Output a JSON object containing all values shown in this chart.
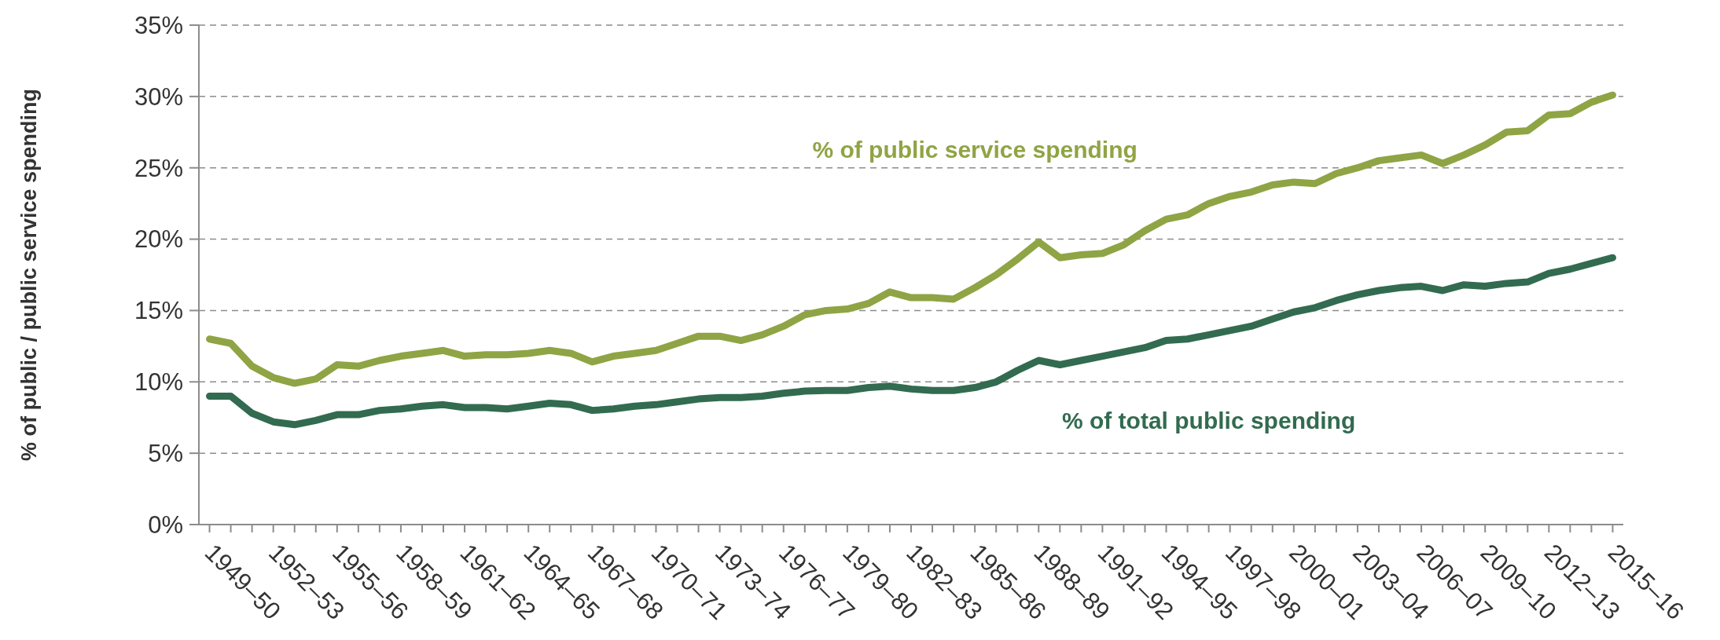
{
  "chart_data": {
    "type": "line",
    "categories": [
      "1949–50",
      null,
      null,
      "1952–53",
      null,
      null,
      "1955–56",
      null,
      null,
      "1958–59",
      null,
      null,
      "1961–62",
      null,
      null,
      "1964–65",
      null,
      null,
      "1967–68",
      null,
      null,
      "1970–71",
      null,
      null,
      "1973–74",
      null,
      null,
      "1976–77",
      null,
      null,
      "1979–80",
      null,
      null,
      "1982–83",
      null,
      null,
      "1985–86",
      null,
      null,
      "1988–89",
      null,
      null,
      "1991–92",
      null,
      null,
      "1994–95",
      null,
      null,
      "1997–98",
      null,
      null,
      "2000–01",
      null,
      null,
      "2003–04",
      null,
      null,
      "2006–07",
      null,
      null,
      "2009–10",
      null,
      null,
      "2012–13",
      null,
      null,
      "2015–16"
    ],
    "series": [
      {
        "name": "% of public service spending",
        "color": "#8fa444",
        "values": [
          13.0,
          12.7,
          11.1,
          10.3,
          9.9,
          10.2,
          11.2,
          11.1,
          11.5,
          11.8,
          12.0,
          12.2,
          11.8,
          11.9,
          11.9,
          12.0,
          12.2,
          12.0,
          11.4,
          11.8,
          12.0,
          12.2,
          12.7,
          13.2,
          13.2,
          12.9,
          13.3,
          13.9,
          14.7,
          15.0,
          15.1,
          15.5,
          16.3,
          15.9,
          15.9,
          15.8,
          16.6,
          17.5,
          18.6,
          19.8,
          18.7,
          18.9,
          19.0,
          19.6,
          20.6,
          21.4,
          21.7,
          22.5,
          23.0,
          23.3,
          23.8,
          24.0,
          23.9,
          24.6,
          25.0,
          25.5,
          25.7,
          25.9,
          25.3,
          25.9,
          26.6,
          27.5,
          27.6,
          28.7,
          28.8,
          29.6,
          30.1
        ]
      },
      {
        "name": "% of total public spending",
        "color": "#326b50",
        "values": [
          9.0,
          9.0,
          7.8,
          7.2,
          7.0,
          7.3,
          7.7,
          7.7,
          8.0,
          8.1,
          8.3,
          8.4,
          8.2,
          8.2,
          8.1,
          8.3,
          8.5,
          8.4,
          8.0,
          8.1,
          8.3,
          8.4,
          8.6,
          8.8,
          8.9,
          8.9,
          9.0,
          9.2,
          9.35,
          9.4,
          9.4,
          9.6,
          9.7,
          9.5,
          9.4,
          9.4,
          9.6,
          10.0,
          10.8,
          11.5,
          11.2,
          11.5,
          11.8,
          12.1,
          12.4,
          12.9,
          13.0,
          13.3,
          13.6,
          13.9,
          14.4,
          14.9,
          15.2,
          15.7,
          16.1,
          16.4,
          16.6,
          16.7,
          16.4,
          16.8,
          16.7,
          16.9,
          17.0,
          17.6,
          17.9,
          18.3,
          18.7
        ]
      }
    ],
    "ylabel": "% of public / public service spending",
    "ylim": [
      0,
      35
    ],
    "yticks": [
      {
        "value": 0,
        "label": "0%"
      },
      {
        "value": 5,
        "label": "5%"
      },
      {
        "value": 10,
        "label": "10%"
      },
      {
        "value": 15,
        "label": "15%"
      },
      {
        "value": 20,
        "label": "20%"
      },
      {
        "value": 25,
        "label": "25%"
      },
      {
        "value": 30,
        "label": "30%"
      },
      {
        "value": 35,
        "label": "35%"
      }
    ],
    "grid": "y",
    "legend": false,
    "marker": "none",
    "line_style": "solid"
  }
}
